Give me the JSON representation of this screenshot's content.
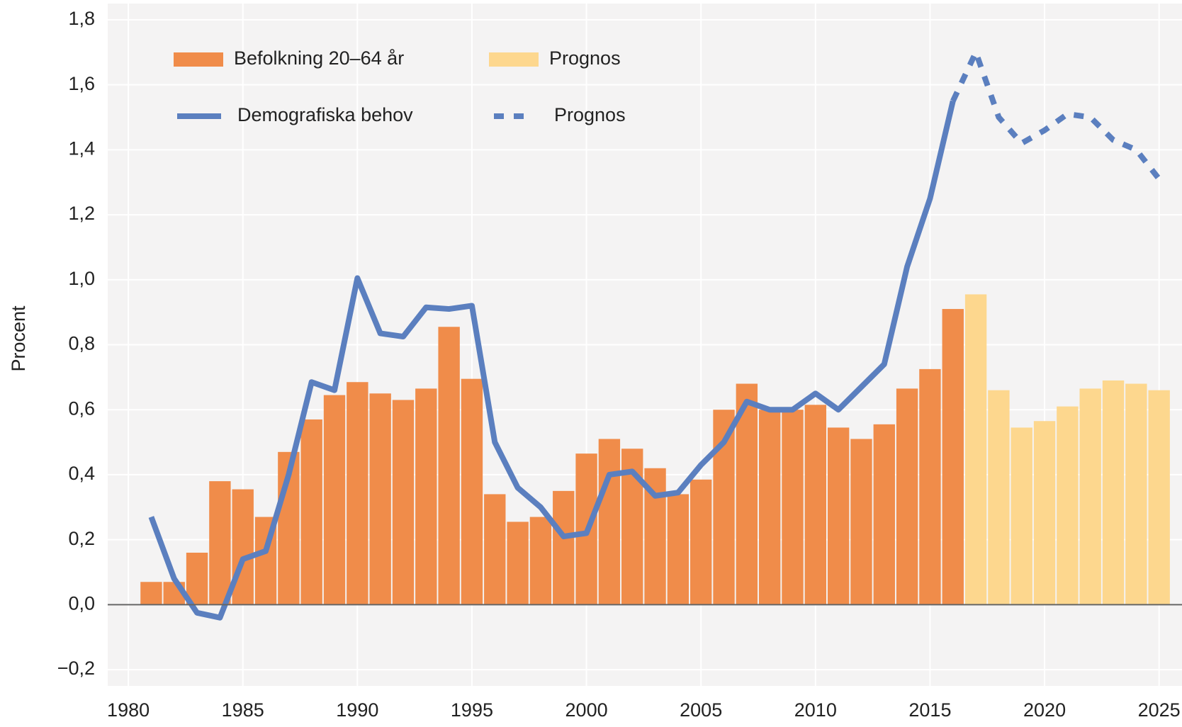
{
  "chart_data": {
    "type": "bar",
    "y_label": "Procent",
    "x": [
      1981,
      1982,
      1983,
      1984,
      1985,
      1986,
      1987,
      1988,
      1989,
      1990,
      1991,
      1992,
      1993,
      1994,
      1995,
      1996,
      1997,
      1998,
      1999,
      2000,
      2001,
      2002,
      2003,
      2004,
      2005,
      2006,
      2007,
      2008,
      2009,
      2010,
      2011,
      2012,
      2013,
      2014,
      2015,
      2016,
      2017,
      2018,
      2019,
      2020,
      2021,
      2022,
      2023,
      2024,
      2025
    ],
    "series": [
      {
        "name": "Befolkning 20–64 år",
        "type": "bar",
        "color": "#f08c4a",
        "values": [
          0.07,
          0.07,
          0.16,
          0.38,
          0.355,
          0.27,
          0.47,
          0.57,
          0.645,
          0.685,
          0.65,
          0.63,
          0.665,
          0.855,
          0.695,
          0.34,
          0.255,
          0.27,
          0.35,
          0.465,
          0.51,
          0.48,
          0.42,
          0.34,
          0.385,
          0.6,
          0.68,
          0.6,
          0.6,
          0.615,
          0.545,
          0.51,
          0.555,
          0.665,
          0.725,
          0.91,
          null,
          null,
          null,
          null,
          null,
          null,
          null,
          null,
          null
        ]
      },
      {
        "name": "Prognos",
        "type": "bar",
        "color": "#fdd78e",
        "values": [
          null,
          null,
          null,
          null,
          null,
          null,
          null,
          null,
          null,
          null,
          null,
          null,
          null,
          null,
          null,
          null,
          null,
          null,
          null,
          null,
          null,
          null,
          null,
          null,
          null,
          null,
          null,
          null,
          null,
          null,
          null,
          null,
          null,
          null,
          null,
          null,
          0.955,
          0.66,
          0.545,
          0.565,
          0.61,
          0.665,
          0.69,
          0.68,
          0.66
        ]
      },
      {
        "name": "Demografiska behov",
        "type": "line",
        "dashed": false,
        "color": "#5b7fbf",
        "values": [
          0.27,
          0.08,
          -0.025,
          -0.04,
          0.14,
          0.165,
          0.4,
          0.685,
          0.66,
          1.005,
          0.835,
          0.825,
          0.915,
          0.91,
          0.92,
          0.5,
          0.36,
          0.3,
          0.21,
          0.22,
          0.4,
          0.41,
          0.335,
          0.345,
          0.43,
          0.5,
          0.625,
          0.6,
          0.6,
          0.65,
          0.6,
          0.67,
          0.74,
          1.04,
          1.25,
          1.55,
          null,
          null,
          null,
          null,
          null,
          null,
          null,
          null,
          null
        ]
      },
      {
        "name": "Prognos",
        "type": "line",
        "dashed": true,
        "color": "#5b7fbf",
        "values": [
          null,
          null,
          null,
          null,
          null,
          null,
          null,
          null,
          null,
          null,
          null,
          null,
          null,
          null,
          null,
          null,
          null,
          null,
          null,
          null,
          null,
          null,
          null,
          null,
          null,
          null,
          null,
          null,
          null,
          null,
          null,
          null,
          null,
          null,
          null,
          1.55,
          1.7,
          1.5,
          1.42,
          1.46,
          1.51,
          1.5,
          1.43,
          1.4,
          1.31
        ]
      }
    ],
    "xlim": [
      1979.1,
      2026.0
    ],
    "ylim": [
      -0.25,
      1.85
    ],
    "xticks": [
      1980,
      1985,
      1990,
      1995,
      2000,
      2005,
      2010,
      2015,
      2020,
      2025
    ],
    "yticks": [
      {
        "value": -0.2,
        "label": "−0,2"
      },
      {
        "value": 0,
        "label": "0,0"
      },
      {
        "value": 0.2,
        "label": "0,2"
      },
      {
        "value": 0.4,
        "label": "0,4"
      },
      {
        "value": 0.6,
        "label": "0,6"
      },
      {
        "value": 0.8,
        "label": "0,8"
      },
      {
        "value": 1.0,
        "label": "1,0"
      },
      {
        "value": 1.2,
        "label": "1,2"
      },
      {
        "value": 1.4,
        "label": "1,4"
      },
      {
        "value": 1.6,
        "label": "1,6"
      },
      {
        "value": 1.8,
        "label": "1,8"
      }
    ],
    "grid": true
  }
}
